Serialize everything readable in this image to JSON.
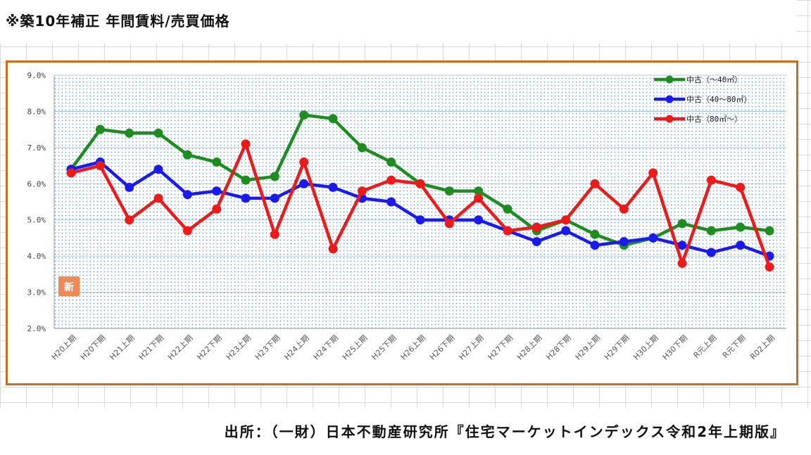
{
  "page": {
    "title": "※築10年補正 年間賃料/売買価格",
    "source": "出所：（一財）日本不動産研究所『住宅マーケットインデックス令和2年上期版』",
    "badge_icon": "新"
  },
  "chart_data": {
    "type": "line",
    "title": "",
    "xlabel": "",
    "ylabel": "",
    "ylim": [
      0.02,
      0.09
    ],
    "yticks": [
      "2.0%",
      "3.0%",
      "4.0%",
      "5.0%",
      "6.0%",
      "7.0%",
      "8.0%",
      "9.0%"
    ],
    "grid": true,
    "legend_position": "top-right",
    "categories": [
      "H20上期",
      "H20下期",
      "H21上期",
      "H21下期",
      "H22上期",
      "H22下期",
      "H23上期",
      "H23下期",
      "H24上期",
      "H24下期",
      "H25上期",
      "H25下期",
      "H26上期",
      "H26下期",
      "H27上期",
      "H27下期",
      "H28上期",
      "H28下期",
      "H29上期",
      "H29下期",
      "H30上期",
      "H30下期",
      "R元上期",
      "R元下期",
      "R02上期"
    ],
    "series": [
      {
        "name": "中古（～40㎡）",
        "color": "#1e8c1e",
        "values": [
          0.064,
          0.075,
          0.074,
          0.074,
          0.068,
          0.066,
          0.061,
          0.062,
          0.079,
          0.078,
          0.07,
          0.066,
          0.06,
          0.058,
          0.058,
          0.053,
          0.047,
          0.05,
          0.046,
          0.043,
          0.045,
          0.049,
          0.047,
          0.048,
          0.047
        ]
      },
      {
        "name": "中古（40～80㎡）",
        "color": "#1a1aee",
        "values": [
          0.064,
          0.066,
          0.059,
          0.064,
          0.057,
          0.058,
          0.056,
          0.056,
          0.06,
          0.059,
          0.056,
          0.055,
          0.05,
          0.05,
          0.05,
          0.047,
          0.044,
          0.047,
          0.043,
          0.044,
          0.045,
          0.043,
          0.041,
          0.043,
          0.04
        ]
      },
      {
        "name": "中古（80㎡～）",
        "color": "#ee1a1a",
        "values": [
          0.063,
          0.065,
          0.05,
          0.056,
          0.047,
          0.053,
          0.071,
          0.046,
          0.066,
          0.042,
          0.058,
          0.061,
          0.06,
          0.049,
          0.056,
          0.047,
          0.048,
          0.05,
          0.06,
          0.053,
          0.063,
          0.038,
          0.061,
          0.059,
          0.037
        ]
      }
    ]
  }
}
